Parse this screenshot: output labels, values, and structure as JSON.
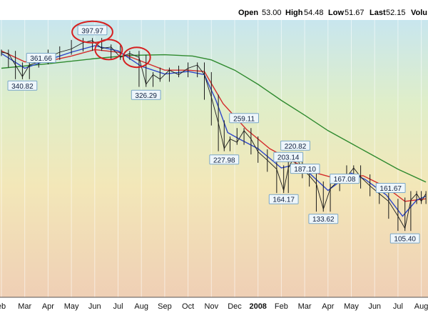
{
  "header": {
    "open_label": "Open",
    "open_value": "53.00",
    "high_label": "High",
    "high_value": "54.48",
    "low_label": "Low",
    "low_value": "51.67",
    "last_label": "Last",
    "last_value": "52.15",
    "volume_label": "Volu"
  },
  "chart_data": {
    "type": "line",
    "title": "",
    "xlabel": "",
    "ylabel": "",
    "x_ticks": [
      "eb",
      "Mar",
      "Apr",
      "May",
      "Jun",
      "Jul",
      "Aug",
      "Sep",
      "Oct",
      "Nov",
      "Dec",
      "2008",
      "Feb",
      "Mar",
      "Apr",
      "May",
      "Jun",
      "Jul",
      "Aug"
    ],
    "bold_ticks": [
      "2008"
    ],
    "price_labels": [
      {
        "text": "397.97",
        "value": 397.97,
        "circled": true
      },
      {
        "text": "340.82",
        "value": 340.82,
        "circled": false
      },
      {
        "text": "361.66",
        "value": 361.66,
        "circled": false
      },
      {
        "text": "326.29",
        "value": 326.29,
        "circled": false
      },
      {
        "text": "259.11",
        "value": 259.11,
        "circled": false
      },
      {
        "text": "227.98",
        "value": 227.98,
        "circled": false
      },
      {
        "text": "220.82",
        "value": 220.82,
        "circled": false
      },
      {
        "text": "164.17",
        "value": 164.17,
        "circled": false
      },
      {
        "text": "187.10",
        "value": 187.1,
        "circled": false
      },
      {
        "text": "203.14",
        "value": 203.14,
        "circled": false
      },
      {
        "text": "133.62",
        "value": 133.62,
        "circled": false
      },
      {
        "text": "161.67",
        "value": 161.67,
        "circled": false
      },
      {
        "text": "167.08",
        "value": 167.08,
        "circled": false
      },
      {
        "text": "105.40",
        "value": 105.4,
        "circled": false
      }
    ],
    "price": [
      {
        "x": 0,
        "y": 380
      },
      {
        "x": 0.3,
        "y": 378
      },
      {
        "x": 0.6,
        "y": 360
      },
      {
        "x": 0.9,
        "y": 342
      },
      {
        "x": 1.2,
        "y": 360
      },
      {
        "x": 1.6,
        "y": 365
      },
      {
        "x": 2.0,
        "y": 372
      },
      {
        "x": 2.5,
        "y": 380
      },
      {
        "x": 3.0,
        "y": 385
      },
      {
        "x": 3.5,
        "y": 395
      },
      {
        "x": 3.9,
        "y": 398
      },
      {
        "x": 4.3,
        "y": 386
      },
      {
        "x": 4.7,
        "y": 388
      },
      {
        "x": 5.1,
        "y": 372
      },
      {
        "x": 5.5,
        "y": 378
      },
      {
        "x": 5.9,
        "y": 372
      },
      {
        "x": 6.2,
        "y": 330
      },
      {
        "x": 6.5,
        "y": 345
      },
      {
        "x": 6.8,
        "y": 338
      },
      {
        "x": 7.2,
        "y": 352
      },
      {
        "x": 7.6,
        "y": 345
      },
      {
        "x": 8.0,
        "y": 355
      },
      {
        "x": 8.4,
        "y": 360
      },
      {
        "x": 8.7,
        "y": 345
      },
      {
        "x": 9.0,
        "y": 310
      },
      {
        "x": 9.3,
        "y": 270
      },
      {
        "x": 9.55,
        "y": 230
      },
      {
        "x": 9.8,
        "y": 245
      },
      {
        "x": 10.1,
        "y": 240
      },
      {
        "x": 10.4,
        "y": 258
      },
      {
        "x": 10.7,
        "y": 245
      },
      {
        "x": 11.0,
        "y": 225
      },
      {
        "x": 11.4,
        "y": 212
      },
      {
        "x": 11.8,
        "y": 198
      },
      {
        "x": 12.1,
        "y": 165
      },
      {
        "x": 12.3,
        "y": 200
      },
      {
        "x": 12.6,
        "y": 220
      },
      {
        "x": 12.9,
        "y": 198
      },
      {
        "x": 13.2,
        "y": 188
      },
      {
        "x": 13.5,
        "y": 175
      },
      {
        "x": 13.8,
        "y": 136
      },
      {
        "x": 14.1,
        "y": 168
      },
      {
        "x": 14.5,
        "y": 182
      },
      {
        "x": 14.8,
        "y": 186
      },
      {
        "x": 15.1,
        "y": 200
      },
      {
        "x": 15.4,
        "y": 186
      },
      {
        "x": 15.8,
        "y": 172
      },
      {
        "x": 16.2,
        "y": 160
      },
      {
        "x": 16.6,
        "y": 148
      },
      {
        "x": 17.0,
        "y": 125
      },
      {
        "x": 17.3,
        "y": 106
      },
      {
        "x": 17.55,
        "y": 150
      },
      {
        "x": 17.8,
        "y": 160
      },
      {
        "x": 18.0,
        "y": 148
      },
      {
        "x": 18.2,
        "y": 160
      }
    ],
    "ma_short": [
      {
        "x": 0,
        "y": 378
      },
      {
        "x": 1,
        "y": 355
      },
      {
        "x": 2,
        "y": 368
      },
      {
        "x": 3,
        "y": 380
      },
      {
        "x": 4,
        "y": 390
      },
      {
        "x": 5,
        "y": 382
      },
      {
        "x": 6,
        "y": 358
      },
      {
        "x": 7,
        "y": 346
      },
      {
        "x": 8,
        "y": 350
      },
      {
        "x": 8.7,
        "y": 345
      },
      {
        "x": 9.2,
        "y": 305
      },
      {
        "x": 9.7,
        "y": 255
      },
      {
        "x": 10.2,
        "y": 245
      },
      {
        "x": 11,
        "y": 230
      },
      {
        "x": 12,
        "y": 200
      },
      {
        "x": 12.6,
        "y": 205
      },
      {
        "x": 13.2,
        "y": 192
      },
      {
        "x": 14,
        "y": 165
      },
      {
        "x": 15,
        "y": 192
      },
      {
        "x": 15.6,
        "y": 182
      },
      {
        "x": 16.5,
        "y": 158
      },
      {
        "x": 17.2,
        "y": 125
      },
      {
        "x": 17.8,
        "y": 150
      },
      {
        "x": 18.2,
        "y": 156
      }
    ],
    "ma_medium": [
      {
        "x": 0,
        "y": 382
      },
      {
        "x": 1,
        "y": 365
      },
      {
        "x": 2,
        "y": 366
      },
      {
        "x": 3,
        "y": 374
      },
      {
        "x": 4,
        "y": 384
      },
      {
        "x": 5,
        "y": 380
      },
      {
        "x": 6,
        "y": 366
      },
      {
        "x": 7,
        "y": 352
      },
      {
        "x": 8,
        "y": 352
      },
      {
        "x": 8.7,
        "y": 350
      },
      {
        "x": 9.5,
        "y": 300
      },
      {
        "x": 10.5,
        "y": 260
      },
      {
        "x": 11.5,
        "y": 230
      },
      {
        "x": 12.5,
        "y": 210
      },
      {
        "x": 13.5,
        "y": 192
      },
      {
        "x": 14.5,
        "y": 182
      },
      {
        "x": 15.5,
        "y": 188
      },
      {
        "x": 16.5,
        "y": 170
      },
      {
        "x": 17.3,
        "y": 148
      },
      {
        "x": 18.2,
        "y": 152
      }
    ],
    "ma_long": [
      {
        "x": 0,
        "y": 355
      },
      {
        "x": 2,
        "y": 362
      },
      {
        "x": 4,
        "y": 370
      },
      {
        "x": 5.5,
        "y": 375
      },
      {
        "x": 7,
        "y": 376
      },
      {
        "x": 8.2,
        "y": 374
      },
      {
        "x": 9,
        "y": 368
      },
      {
        "x": 10,
        "y": 352
      },
      {
        "x": 11,
        "y": 330
      },
      {
        "x": 12,
        "y": 305
      },
      {
        "x": 13,
        "y": 282
      },
      {
        "x": 14,
        "y": 258
      },
      {
        "x": 15,
        "y": 238
      },
      {
        "x": 16,
        "y": 218
      },
      {
        "x": 17,
        "y": 198
      },
      {
        "x": 18.2,
        "y": 178
      }
    ],
    "colors": {
      "price": "#1a1a1a",
      "ma_short": "#2e46c8",
      "ma_medium": "#d32b2b",
      "ma_long": "#2f8a2f",
      "circle": "#d62020"
    },
    "grid": true,
    "legend": "none"
  }
}
